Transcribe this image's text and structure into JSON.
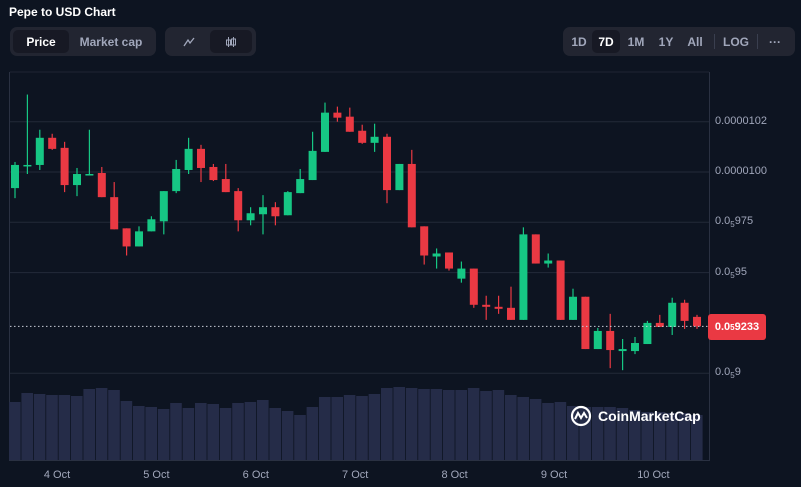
{
  "header": {
    "title": "Pepe to USD Chart"
  },
  "type_toggle": {
    "price": "Price",
    "market_cap": "Market cap"
  },
  "chart_toggle": {
    "line": "line-chart-icon",
    "candle": "candlestick-icon"
  },
  "ranges": {
    "d1": "1D",
    "d7": "7D",
    "m1": "1M",
    "y1": "1Y",
    "all": "All",
    "log": "LOG",
    "more": "···"
  },
  "watermark": "CoinMarketCap",
  "colors": {
    "up": "#16c784",
    "down": "#ea3943",
    "volume": "#252c48",
    "bg": "#0d1421"
  },
  "chart_data": {
    "type": "candlestick",
    "title": "Pepe to USD Chart",
    "unit": "1e-8 USD",
    "ylim": [
      895,
      1050
    ],
    "y_ticks": [
      {
        "prefix": "0.0000102",
        "sub": "",
        "digits": ""
      },
      {
        "prefix": "0.0000100",
        "sub": "",
        "digits": ""
      },
      {
        "prefix": "0.0",
        "sub": "5",
        "digits": "975"
      },
      {
        "prefix": "0.0",
        "sub": "5",
        "digits": "95"
      },
      {
        "prefix": "0.0",
        "sub": "5",
        "digits": "9"
      }
    ],
    "y_tick_values": [
      1025,
      1000,
      975,
      950,
      900
    ],
    "current_price": {
      "prefix": "0.0",
      "sub": "5",
      "digits": "9233",
      "value": 923.3
    },
    "x_ticks": [
      "4 Oct",
      "5 Oct",
      "6 Oct",
      "7 Oct",
      "8 Oct",
      "9 Oct",
      "10 Oct"
    ],
    "ohlc": [
      [
        992,
        1005,
        987,
        1003.5
      ],
      [
        1003,
        1038.5,
        999,
        1003.5
      ],
      [
        1003.5,
        1021,
        1001,
        1017
      ],
      [
        1017,
        1019,
        1011,
        1011.5
      ],
      [
        1012,
        1015,
        990,
        993.5
      ],
      [
        993.5,
        1002,
        988,
        999
      ],
      [
        998.5,
        1021,
        998.5,
        999
      ],
      [
        999.5,
        1002.5,
        987.5,
        987.5
      ],
      [
        987.5,
        995,
        971.5,
        971.5
      ],
      [
        972,
        972,
        958.5,
        963
      ],
      [
        963,
        973,
        963,
        970.5
      ],
      [
        970.5,
        978,
        970.5,
        976.5
      ],
      [
        975.5,
        990.5,
        969,
        990.5
      ],
      [
        990.5,
        1006,
        989.5,
        1001.5
      ],
      [
        1001,
        1017,
        999,
        1011.5
      ],
      [
        1011.5,
        1013.5,
        995,
        1002
      ],
      [
        1002.5,
        1004,
        995.5,
        996
      ],
      [
        996.5,
        1004,
        990,
        990
      ],
      [
        990.5,
        992,
        970.5,
        976
      ],
      [
        976,
        982.5,
        973.5,
        979.5
      ],
      [
        979,
        988.5,
        969,
        982.5
      ],
      [
        982.5,
        985,
        973.5,
        978
      ],
      [
        978.5,
        990.5,
        978.5,
        990
      ],
      [
        989.5,
        1001.5,
        989.5,
        996.5
      ],
      [
        996,
        1020,
        996,
        1010.5
      ],
      [
        1010,
        1034.5,
        1010,
        1029.5
      ],
      [
        1029.5,
        1032.5,
        1025,
        1027
      ],
      [
        1027.5,
        1032,
        1020,
        1020
      ],
      [
        1020.5,
        1023.5,
        1014,
        1014.5
      ],
      [
        1014.5,
        1024,
        1010,
        1017.5
      ],
      [
        1017.5,
        1019,
        984.5,
        991
      ],
      [
        991,
        1004,
        991,
        1004
      ],
      [
        1004,
        1011,
        972.5,
        972.5
      ],
      [
        973,
        973,
        954,
        958.5
      ],
      [
        958,
        962,
        952,
        959.5
      ],
      [
        960,
        960,
        951,
        952
      ],
      [
        947,
        955.5,
        945,
        952
      ],
      [
        952,
        952,
        932.5,
        934
      ],
      [
        934,
        938.5,
        926.5,
        933
      ],
      [
        933,
        938.5,
        929.5,
        932
      ],
      [
        932.5,
        943,
        926.5,
        926.5
      ],
      [
        926.5,
        972.5,
        926.5,
        969
      ],
      [
        969,
        969,
        954.5,
        954.5
      ],
      [
        954.5,
        959.5,
        952.5,
        956
      ],
      [
        956,
        956,
        926.5,
        926.5
      ],
      [
        926.5,
        942,
        926.5,
        938
      ],
      [
        938,
        938,
        912,
        912
      ],
      [
        912,
        922.5,
        912,
        921
      ],
      [
        921,
        929.5,
        902.5,
        911.5
      ],
      [
        911,
        917,
        901.5,
        912
      ],
      [
        911,
        918,
        909.5,
        915
      ],
      [
        914.5,
        926,
        914.5,
        925
      ],
      [
        925,
        929,
        923,
        923
      ],
      [
        923,
        937.5,
        919,
        935
      ],
      [
        935,
        936.5,
        922,
        926
      ],
      [
        928,
        929,
        922,
        923.3
      ]
    ],
    "volume_relative": [
      58,
      67,
      66,
      65,
      65,
      64,
      71,
      72,
      70,
      59,
      54,
      53,
      51,
      57,
      52,
      57,
      56,
      52,
      57,
      58,
      60,
      52,
      49,
      45,
      53,
      63,
      63,
      65,
      64,
      66,
      72,
      73,
      72,
      71,
      71,
      70,
      70,
      72,
      69,
      70,
      65,
      63,
      61,
      57,
      58,
      54,
      53,
      53,
      53,
      52,
      50,
      48,
      48,
      47,
      47,
      45
    ]
  }
}
